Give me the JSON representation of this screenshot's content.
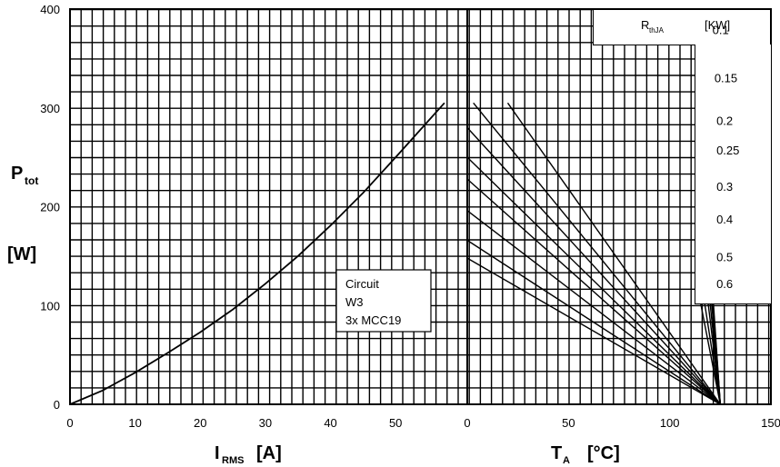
{
  "chart_data": {
    "type": "line",
    "left_panel": {
      "xlabel": {
        "main": "I",
        "sub": "RMS",
        "unit": "[A]"
      },
      "ylabel": {
        "main": "P",
        "sub": "tot",
        "unit": "[W]"
      },
      "xlim": [
        0,
        61
      ],
      "ylim": [
        0,
        400
      ],
      "x_ticks": [
        "0",
        "10",
        "20",
        "30",
        "40",
        "50"
      ],
      "y_ticks": [
        "0",
        "100",
        "200",
        "300",
        "400"
      ],
      "grid": true,
      "series": [
        {
          "x": [
            0,
            5,
            10,
            15,
            20,
            25,
            30,
            35,
            40,
            45,
            50,
            57.5
          ],
          "y": [
            0,
            14,
            32,
            52,
            73,
            96,
            122,
            150,
            181,
            214,
            250,
            305
          ]
        }
      ]
    },
    "right_panel": {
      "xlabel": {
        "main": "T",
        "sub": "A",
        "unit": "[°C]"
      },
      "xlim": [
        0,
        150
      ],
      "x_ticks": [
        "0",
        "50",
        "100",
        "150"
      ],
      "grid": true,
      "legend_header": {
        "main": "R",
        "sub": "thJA",
        "unit": "[KW]"
      },
      "series": [
        {
          "name": "0.1",
          "x": [
            125,
            113
          ],
          "y": [
            0,
            362
          ]
        },
        {
          "name": "0.15",
          "x": [
            125,
            114
          ],
          "y": [
            0,
            313
          ]
        },
        {
          "name": "0.2",
          "x": [
            125,
            115
          ],
          "y": [
            0,
            270
          ]
        },
        {
          "name": "0.25",
          "x": [
            125,
            115
          ],
          "y": [
            0,
            240
          ]
        },
        {
          "name": "0.3",
          "x": [
            125,
            115
          ],
          "y": [
            0,
            203
          ]
        },
        {
          "name": "0.4",
          "x": [
            125,
            115
          ],
          "y": [
            0,
            170
          ]
        },
        {
          "name": "0.5",
          "x": [
            125,
            115
          ],
          "y": [
            0,
            132
          ]
        },
        {
          "name": "0.6",
          "x": [
            125,
            115
          ],
          "y": [
            0,
            105
          ]
        }
      ],
      "derating_lines": [
        {
          "x": [
            3,
            125
          ],
          "y": [
            305,
            0
          ]
        },
        {
          "x": [
            20,
            125
          ],
          "y": [
            305,
            0
          ]
        },
        {
          "x": [
            0,
            125
          ],
          "y": [
            280,
            0
          ]
        },
        {
          "x": [
            0,
            125
          ],
          "y": [
            250,
            0
          ]
        },
        {
          "x": [
            0,
            125
          ],
          "y": [
            228,
            0
          ]
        },
        {
          "x": [
            0,
            125
          ],
          "y": [
            196,
            0
          ]
        },
        {
          "x": [
            0,
            125
          ],
          "y": [
            166,
            0
          ]
        },
        {
          "x": [
            0,
            125
          ],
          "y": [
            148,
            0
          ]
        }
      ]
    },
    "annotation": [
      "Circuit",
      "W3",
      "3x MCC19"
    ]
  }
}
